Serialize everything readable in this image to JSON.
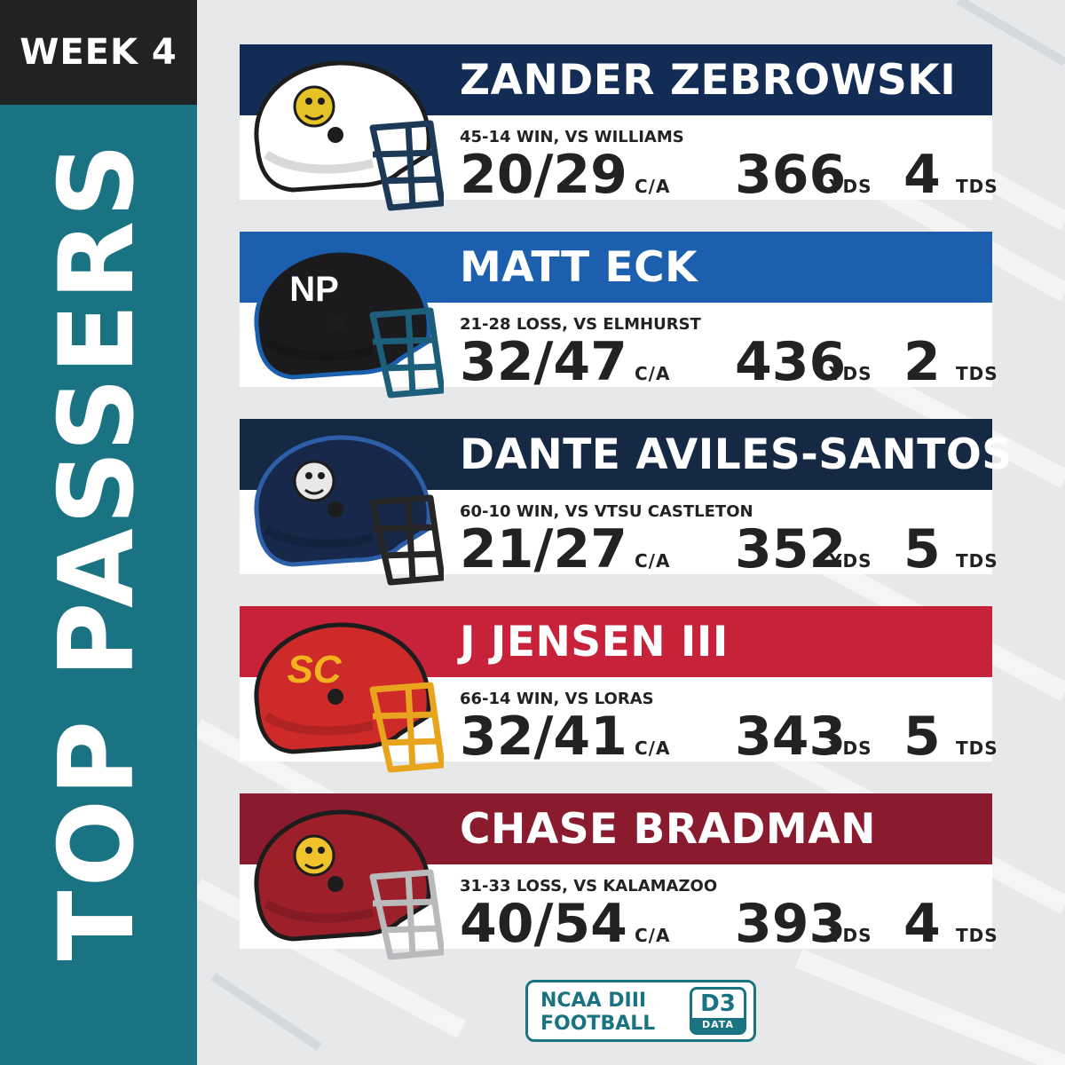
{
  "week": "WEEK 4",
  "title": "TOP PASSERS",
  "colors": {
    "teal": "#1a7382",
    "dark": "#212224",
    "background": "#e7e8ea"
  },
  "units": {
    "ca": "C/A",
    "yds": "YDS",
    "tds": "TDS"
  },
  "players": [
    {
      "name": "ZANDER ZEBROWSKI",
      "result": "45-14 WIN, VS WILLIAMS",
      "ca": "20/29",
      "yds": "366",
      "tds": "4",
      "header_color": "#132c55",
      "helmet": {
        "shell": "#ffffff",
        "outline": "#1d1d1d",
        "mask": "#1c3a57",
        "logo": "gold-bird-mascot",
        "logo_color": "#e6c229"
      }
    },
    {
      "name": "MATT ECK",
      "result": "21-28 LOSS, VS ELMHURST",
      "ca": "32/47",
      "yds": "436",
      "tds": "2",
      "header_color": "#1b5fae",
      "helmet": {
        "shell": "#1b1b1d",
        "outline": "#1b5fae",
        "mask": "#1d5f7a",
        "logo": "NP",
        "logo_color": "#ffffff"
      }
    },
    {
      "name": "DANTE AVILES-SANTOS",
      "result": "60-10 WIN, VS VTSU CASTLETON",
      "ca": "21/27",
      "yds": "352",
      "tds": "5",
      "header_color": "#152844",
      "helmet": {
        "shell": "#17284a",
        "outline": "#2c5fa8",
        "mask": "#262626",
        "logo": "pirate-mascot",
        "logo_color": "#e8e8e8"
      }
    },
    {
      "name": "J JENSEN III",
      "result": "66-14 WIN, VS LORAS",
      "ca": "32/41",
      "yds": "343",
      "tds": "5",
      "header_color": "#c8213a",
      "helmet": {
        "shell": "#cf2a2a",
        "outline": "#1d1d1d",
        "mask": "#e8a41c",
        "logo": "SC",
        "logo_color": "#f2b31e"
      }
    },
    {
      "name": "CHASE BRADMAN",
      "result": "31-33 LOSS, VS KALAMAZOO",
      "ca": "40/54",
      "yds": "393",
      "tds": "4",
      "header_color": "#8a1a2e",
      "helmet": {
        "shell": "#9c1f2a",
        "outline": "#1d1d1d",
        "mask": "#b9babc",
        "logo": "knight-mascot",
        "logo_color": "#f0c22b"
      }
    }
  ],
  "footer": {
    "line1": "NCAA DIII",
    "line2": "FOOTBALL",
    "badge": "D3",
    "badge_sub": "DATA"
  }
}
